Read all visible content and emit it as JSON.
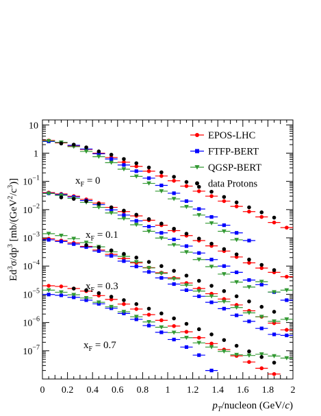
{
  "chart_data": {
    "type": "scatter",
    "xlabel_main": "p",
    "xlabel_sub": "T",
    "xlabel_rest": "/nucleon (GeV/",
    "xlabel_c": "c",
    "xlabel_close": ")",
    "ylabel_parts": [
      "Ed",
      "3",
      "σ/dp",
      "3",
      "  [mb/(GeV",
      "2",
      "/c",
      "3",
      ")]"
    ],
    "xlim": [
      0,
      2
    ],
    "ylim": [
      1e-08,
      15
    ],
    "yscale": "log",
    "x_ticks": [
      "0",
      "0.2",
      "0.4",
      "0.6",
      "0.8",
      "1",
      "1.2",
      "1.4",
      "1.6",
      "1.8",
      "2"
    ],
    "y_ticks": [
      {
        "base": "10",
        "exp": "",
        "label": "10"
      },
      {
        "base": "1",
        "exp": "",
        "label": "1"
      },
      {
        "base": "10",
        "exp": "−1"
      },
      {
        "base": "10",
        "exp": "−2"
      },
      {
        "base": "10",
        "exp": "−3"
      },
      {
        "base": "10",
        "exp": "−4"
      },
      {
        "base": "10",
        "exp": "−5"
      },
      {
        "base": "10",
        "exp": "−6"
      },
      {
        "base": "10",
        "exp": "−7"
      }
    ],
    "legend_position": "top-right",
    "annotations": [
      {
        "main": "x",
        "sub": "F",
        "rest": " = 0"
      },
      {
        "main": "x",
        "sub": "F",
        "rest": " = 0.1"
      },
      {
        "main": "x",
        "sub": "F",
        "rest": " = 0.3"
      },
      {
        "main": "x",
        "sub": "F",
        "rest": " = 0.7"
      }
    ],
    "series": [
      {
        "name": "EPOS-LHC",
        "color": "#ff0000",
        "marker": "circle",
        "xerr": 0.05,
        "groups": [
          {
            "x": [
              0.05,
              0.15,
              0.25,
              0.35,
              0.45,
              0.55,
              0.65,
              0.75,
              0.85,
              0.95,
              1.05,
              1.15,
              1.25,
              1.35,
              1.45,
              1.55,
              1.65,
              1.75,
              1.85,
              1.95
            ],
            "y": [
              2.8,
              2.3,
              1.8,
              1.35,
              1.0,
              0.7,
              0.48,
              0.34,
              0.23,
              0.155,
              0.105,
              0.068,
              0.045,
              0.03,
              0.02,
              0.013,
              0.0085,
              0.0055,
              0.0035,
              0.0023
            ]
          },
          {
            "x": [
              0.05,
              0.15,
              0.25,
              0.35,
              0.45,
              0.55,
              0.65,
              0.75,
              0.85,
              0.95,
              1.05,
              1.15,
              1.25,
              1.35,
              1.45,
              1.55,
              1.65,
              1.75,
              1.85,
              1.95
            ],
            "y": [
              0.04,
              0.036,
              0.03,
              0.023,
              0.017,
              0.012,
              0.0085,
              0.006,
              0.0042,
              0.0028,
              0.0018,
              0.0012,
              0.0008,
              0.00052,
              0.00034,
              0.00021,
              0.00013,
              8.5e-05,
              6e-05,
              4.2e-05
            ]
          },
          {
            "x": [
              0.05,
              0.15,
              0.25,
              0.35,
              0.45,
              0.55,
              0.65,
              0.75,
              0.85,
              0.95,
              1.05,
              1.15,
              1.25,
              1.35,
              1.45,
              1.55,
              1.65,
              1.75,
              1.85,
              1.95
            ],
            "y": [
              0.00093,
              0.0008,
              0.00066,
              0.0005,
              0.00037,
              0.00026,
              0.000185,
              0.00013,
              8.8e-05,
              5.8e-05,
              3.8e-05,
              2.5e-05,
              1.6e-05,
              1.05e-05,
              6.8e-06,
              4.2e-06,
              2.6e-06,
              1.6e-06,
              9.5e-07,
              5.5e-07
            ]
          },
          {
            "x": [
              0.05,
              0.15,
              0.25,
              0.35,
              0.45,
              0.55,
              0.65,
              0.75,
              0.85,
              0.95,
              1.05,
              1.15,
              1.25,
              1.35,
              1.45,
              1.55,
              1.65,
              1.75,
              1.85,
              1.95
            ],
            "y": [
              2e-05,
              1.9e-05,
              1.6e-05,
              1.3e-05,
              9e-06,
              6.6e-06,
              4.5e-06,
              3e-06,
              1.9e-06,
              1.2e-06,
              7.5e-07,
              4.7e-07,
              2.9e-07,
              1.8e-07,
              1.1e-07,
              6.6e-08,
              4e-08,
              2.4e-08,
              1.5e-08,
              9.5e-09
            ]
          }
        ]
      },
      {
        "name": "FTFP-BERT",
        "color": "#0000ff",
        "marker": "square",
        "xerr": 0.05,
        "groups": [
          {
            "x": [
              0.05,
              0.15,
              0.25,
              0.35,
              0.45,
              0.55,
              0.65,
              0.75,
              0.85,
              0.95,
              1.05,
              1.15,
              1.25,
              1.35,
              1.45,
              1.55,
              1.65
            ],
            "y": [
              2.6,
              2.4,
              1.9,
              1.4,
              0.95,
              0.62,
              0.38,
              0.23,
              0.13,
              0.072,
              0.038,
              0.02,
              0.0105,
              0.0055,
              0.0028,
              0.0015,
              0.0008
            ]
          },
          {
            "x": [
              0.05,
              0.15,
              0.25,
              0.35,
              0.45,
              0.55,
              0.65,
              0.75,
              0.85,
              0.95,
              1.05,
              1.15,
              1.25,
              1.35,
              1.45,
              1.55,
              1.65,
              1.75,
              1.85,
              1.95
            ],
            "y": [
              0.038,
              0.034,
              0.028,
              0.021,
              0.015,
              0.0098,
              0.0064,
              0.004,
              0.0025,
              0.0015,
              0.00088,
              0.00051,
              0.00029,
              0.00017,
              0.0001,
              6e-05,
              3.2e-05,
              2.2e-05,
              1.2e-05,
              6.2e-06
            ]
          },
          {
            "x": [
              0.05,
              0.15,
              0.25,
              0.35,
              0.45,
              0.55,
              0.65,
              0.75,
              0.85,
              0.95,
              1.05,
              1.15,
              1.25,
              1.35,
              1.45,
              1.55,
              1.65,
              1.75,
              1.85,
              1.95
            ],
            "y": [
              0.00085,
              0.00074,
              0.0006,
              0.00047,
              0.00034,
              0.00023,
              0.00015,
              9.7e-05,
              6.2e-05,
              3.8e-05,
              2.3e-05,
              1.4e-05,
              8.5e-06,
              5.2e-06,
              3.1e-06,
              1.8e-06,
              1.1e-06,
              6.2e-07,
              3.8e-07,
              3.5e-07
            ]
          },
          {
            "x": [
              0.05,
              0.15,
              0.25,
              0.35,
              0.45,
              0.55,
              0.65,
              0.75,
              0.85,
              0.95,
              1.05,
              1.15,
              1.25,
              1.35
            ],
            "y": [
              9.8e-06,
              9.2e-06,
              7.8e-06,
              6.2e-06,
              4.6e-06,
              3.2e-06,
              2.1e-06,
              1.3e-06,
              7.8e-07,
              4.5e-07,
              2.5e-07,
              1.35e-07,
              7e-08,
              2e-08
            ]
          }
        ]
      },
      {
        "name": "QGSP-BERT",
        "color": "#339933",
        "marker": "triangle-down",
        "xerr": 0.05,
        "groups": [
          {
            "x": [
              0.05,
              0.15,
              0.25,
              0.35,
              0.45,
              0.55,
              0.65,
              0.75,
              0.85,
              0.95,
              1.05,
              1.15,
              1.25,
              1.35,
              1.45,
              1.55
            ],
            "y": [
              2.7,
              2.4,
              1.7,
              1.15,
              0.75,
              0.46,
              0.27,
              0.15,
              0.085,
              0.045,
              0.024,
              0.0125,
              0.0064,
              0.0033,
              0.0017,
              0.00085
            ]
          },
          {
            "x": [
              0.05,
              0.15,
              0.25,
              0.35,
              0.45,
              0.55,
              0.65,
              0.75,
              0.85,
              0.95,
              1.05,
              1.15,
              1.25,
              1.35,
              1.45,
              1.55,
              1.65,
              1.75,
              1.85,
              1.95
            ],
            "y": [
              0.037,
              0.032,
              0.025,
              0.018,
              0.012,
              0.0076,
              0.0048,
              0.0029,
              0.0017,
              0.00098,
              0.00056,
              0.00031,
              0.00017,
              9.5e-05,
              5.2e-05,
              2.7e-05,
              1.8e-05,
              2.8e-05,
              1.2e-05,
              1.4e-05
            ]
          },
          {
            "x": [
              0.05,
              0.15,
              0.25,
              0.35,
              0.45,
              0.55,
              0.65,
              0.75,
              0.85,
              0.95,
              1.05,
              1.15,
              1.25,
              1.35,
              1.45,
              1.55,
              1.65,
              1.75,
              1.85,
              1.95
            ],
            "y": [
              0.0014,
              0.0012,
              0.00093,
              0.00068,
              0.00048,
              0.00032,
              0.00022,
              0.00014,
              8.6e-05,
              5.5e-05,
              3.5e-05,
              2.1e-05,
              1.3e-05,
              8.5e-06,
              5.5e-06,
              3.4e-06,
              2.2e-06,
              1.6e-06,
              1.1e-06,
              1.3e-06
            ]
          },
          {
            "x": [
              0.05,
              0.15,
              0.25,
              0.35,
              0.45,
              0.55,
              0.65,
              0.75,
              0.85,
              0.95,
              1.05,
              1.15,
              1.25,
              1.35,
              1.45,
              1.55,
              1.65,
              1.75,
              1.85,
              1.95
            ],
            "y": [
              1.4e-05,
              1.18e-05,
              9.6e-06,
              7.4e-06,
              5.2e-06,
              3.6e-06,
              2.4e-06,
              1.6e-06,
              1.05e-06,
              6.8e-07,
              4.4e-07,
              2.9e-07,
              1.9e-07,
              1.35e-07,
              9.5e-08,
              7.2e-08,
              6.8e-08,
              7.5e-08,
              6.5e-08,
              5.5e-08
            ]
          }
        ]
      },
      {
        "name": "data Protons",
        "color": "#000000",
        "marker": "circle",
        "xerr": 0,
        "groups": [
          {
            "x": [
              0.15,
              0.25,
              0.35,
              0.45,
              0.55,
              0.65,
              0.75,
              0.85,
              0.95,
              1.05,
              1.15,
              1.25,
              1.35,
              1.45,
              1.55,
              1.65,
              1.75,
              1.85
            ],
            "y": [
              2.2,
              2.0,
              1.6,
              1.15,
              0.88,
              0.62,
              0.44,
              0.31,
              0.21,
              0.145,
              0.095,
              0.064,
              0.043,
              0.028,
              0.018,
              0.012,
              0.008,
              0.0052
            ]
          },
          {
            "x": [
              0.15,
              0.25,
              0.35,
              0.45,
              0.55,
              0.65,
              0.75,
              0.85,
              0.95,
              1.05,
              1.15,
              1.25,
              1.35,
              1.45,
              1.55,
              1.65,
              1.75,
              1.85
            ],
            "y": [
              0.027,
              0.024,
              0.02,
              0.016,
              0.012,
              0.0092,
              0.0066,
              0.0046,
              0.0032,
              0.0021,
              0.0014,
              0.00094,
              0.00062,
              0.0004,
              0.00026,
              0.00017,
              0.00011,
              7.2e-05
            ]
          },
          {
            "x": [
              0.35,
              0.45,
              0.55,
              0.65,
              0.75,
              0.85,
              0.95,
              1.05,
              1.15,
              1.25,
              1.35,
              1.45,
              1.55,
              1.65,
              1.75,
              1.85
            ],
            "y": [
              0.00055,
              0.00046,
              0.00036,
              0.00027,
              0.0002,
              0.00014,
              0.0001,
              6.8e-05,
              4.6e-05,
              3e-05,
              2e-05,
              1.3e-05,
              8.5e-06,
              5.6e-06,
              3.6e-06,
              2.4e-06
            ]
          },
          {
            "x": [
              0.25,
              0.35,
              0.45,
              0.55,
              0.65,
              0.75,
              0.85,
              0.95,
              1.05,
              1.15,
              1.25,
              1.35,
              1.45,
              1.55,
              1.65,
              1.75,
              1.85
            ],
            "y": [
              1.6e-05,
              1.4e-05,
              1.1e-05,
              8.2e-06,
              6.2e-06,
              4.5e-06,
              3.1e-06,
              2.1e-06,
              1.4e-06,
              9e-07,
              5.8e-07,
              3.8e-07,
              2.4e-07,
              1.5e-07,
              9.5e-08,
              6e-08,
              3.8e-08
            ]
          }
        ]
      }
    ]
  }
}
